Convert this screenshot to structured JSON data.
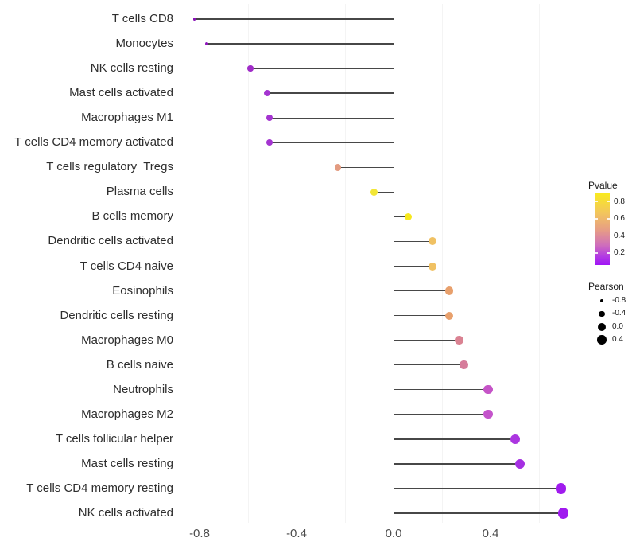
{
  "chart_data": {
    "type": "lollipop",
    "orientation": "horizontal",
    "title": "",
    "xlabel": "",
    "ylabel": "",
    "x_axis": {
      "major_ticks": [
        -0.8,
        -0.4,
        0.0,
        0.4
      ],
      "major_tick_labels": [
        "-0.8",
        "-0.4",
        "0.0",
        "0.4"
      ],
      "minor_ticks": [
        -0.6,
        -0.2,
        0.2,
        0.6
      ],
      "range": [
        -0.9,
        0.78
      ],
      "grid": true
    },
    "points": [
      {
        "label": "T cells CD8",
        "pearson": -0.82,
        "color": "#8912b6",
        "radius": 1.6
      },
      {
        "label": "Monocytes",
        "pearson": -0.77,
        "color": "#9016be",
        "radius": 2.3
      },
      {
        "label": "NK cells resting",
        "pearson": -0.59,
        "color": "#a02cc8",
        "radius": 3.7
      },
      {
        "label": "Mast cells activated",
        "pearson": -0.52,
        "color": "#a434d0",
        "radius": 4.0
      },
      {
        "label": "Macrophages M1",
        "pearson": -0.51,
        "color": "#a434d0",
        "radius": 4.0
      },
      {
        "label": "T cells CD4 memory activated",
        "pearson": -0.51,
        "color": "#a434d0",
        "radius": 4.0
      },
      {
        "label": "T cells regulatory  Tregs",
        "pearson": -0.23,
        "color": "#e39b80",
        "radius": 4.3
      },
      {
        "label": "Plasma cells",
        "pearson": -0.08,
        "color": "#f2e636",
        "radius": 4.6
      },
      {
        "label": "B cells memory",
        "pearson": 0.06,
        "color": "#f7e81e",
        "radius": 4.8
      },
      {
        "label": "Dendritic cells activated",
        "pearson": 0.16,
        "color": "#f0c163",
        "radius": 5.0
      },
      {
        "label": "T cells CD4 naive",
        "pearson": 0.16,
        "color": "#f0c163",
        "radius": 5.0
      },
      {
        "label": "Eosinophils",
        "pearson": 0.23,
        "color": "#e8a06c",
        "radius": 5.1
      },
      {
        "label": "Dendritic cells resting",
        "pearson": 0.23,
        "color": "#e8a06c",
        "radius": 5.1
      },
      {
        "label": "Macrophages M0",
        "pearson": 0.27,
        "color": "#da8292",
        "radius": 5.2
      },
      {
        "label": "B cells naive",
        "pearson": 0.29,
        "color": "#d67c9b",
        "radius": 5.3
      },
      {
        "label": "Neutrophils",
        "pearson": 0.39,
        "color": "#c554c7",
        "radius": 5.6
      },
      {
        "label": "Macrophages M2",
        "pearson": 0.39,
        "color": "#c454cb",
        "radius": 5.6
      },
      {
        "label": "T cells follicular helper",
        "pearson": 0.5,
        "color": "#ab35e0",
        "radius": 6.0
      },
      {
        "label": "Mast cells resting",
        "pearson": 0.52,
        "color": "#a52fe2",
        "radius": 6.1
      },
      {
        "label": "T cells CD4 memory resting",
        "pearson": 0.69,
        "color": "#a01bee",
        "radius": 6.8
      },
      {
        "label": "NK cells activated",
        "pearson": 0.7,
        "color": "#a019ef",
        "radius": 6.8
      }
    ],
    "legend_pvalue": {
      "title": "Pvalue",
      "tick_values": [
        0.8,
        0.6,
        0.4,
        0.2
      ],
      "tick_labels": [
        "0.8",
        "0.6",
        "0.4",
        "0.2"
      ],
      "bar_value_range": [
        0.9,
        0.06
      ],
      "gradient_top_to_bottom": [
        "#f9ea20",
        "#f2c55e",
        "#e69b87",
        "#cf6fba",
        "#b23be3",
        "#a014f6"
      ],
      "position": "right"
    },
    "legend_pearson": {
      "title": "Pearson",
      "entries": [
        {
          "label": "-0.8",
          "radius": 2.2
        },
        {
          "label": "-0.4",
          "radius": 3.9
        },
        {
          "label": "0.0",
          "radius": 5.0
        },
        {
          "label": "0.4",
          "radius": 5.8
        }
      ],
      "dot_color": "#000000",
      "position": "right"
    },
    "style": {
      "background": "#ffffff",
      "stem_color": "#474747",
      "major_grid_color": "#e8e8e8",
      "minor_grid_color": "#f4f4f4",
      "axis_text_color": "#4d4d4d",
      "label_text_color": "#2e2e2e"
    }
  }
}
